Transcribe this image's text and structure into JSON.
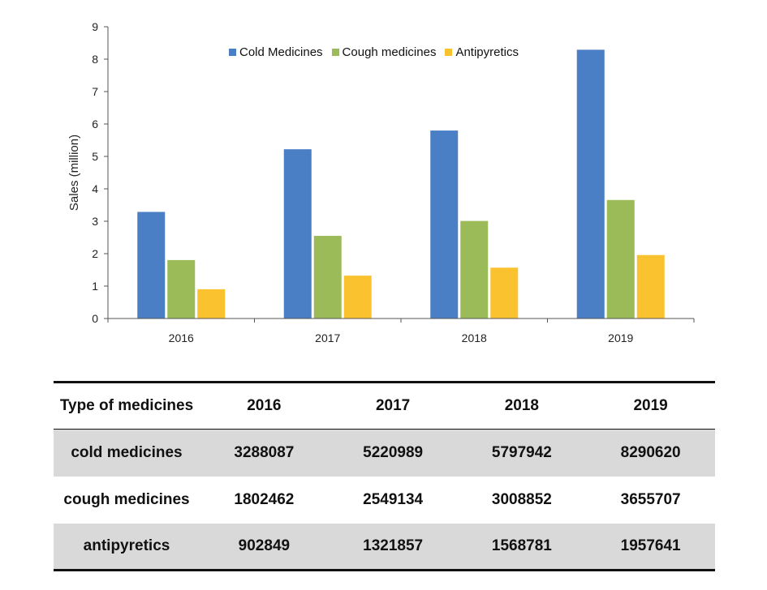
{
  "chart_data": {
    "type": "bar",
    "categories": [
      "2016",
      "2017",
      "2018",
      "2019"
    ],
    "series": [
      {
        "name": "Cold Medicines",
        "color": "#4a7ec5",
        "values": [
          3.288087,
          5.220989,
          5.797942,
          8.29062
        ]
      },
      {
        "name": "Cough medicines",
        "color": "#9bbb59",
        "values": [
          1.802462,
          2.549134,
          3.008852,
          3.655707
        ]
      },
      {
        "name": "Antipyretics",
        "color": "#f9c22e",
        "values": [
          0.902849,
          1.321857,
          1.568781,
          1.957641
        ]
      }
    ],
    "yticks": [
      "0",
      "1",
      "2",
      "3",
      "4",
      "5",
      "6",
      "7",
      "8",
      "9"
    ],
    "ylim": [
      0,
      9
    ],
    "ylabel": "Sales (million)",
    "xlabel": "",
    "legend_position": "top-center",
    "grid": false
  },
  "table": {
    "header": [
      "Type of medicines",
      "2016",
      "2017",
      "2018",
      "2019"
    ],
    "rows": [
      {
        "label": "cold medicines",
        "values": [
          "3288087",
          "5220989",
          "5797942",
          "8290620"
        ]
      },
      {
        "label": "cough medicines",
        "values": [
          "1802462",
          "2549134",
          "3008852",
          "3655707"
        ]
      },
      {
        "label": "antipyretics",
        "values": [
          "902849",
          "1321857",
          "1568781",
          "1957641"
        ]
      }
    ]
  }
}
